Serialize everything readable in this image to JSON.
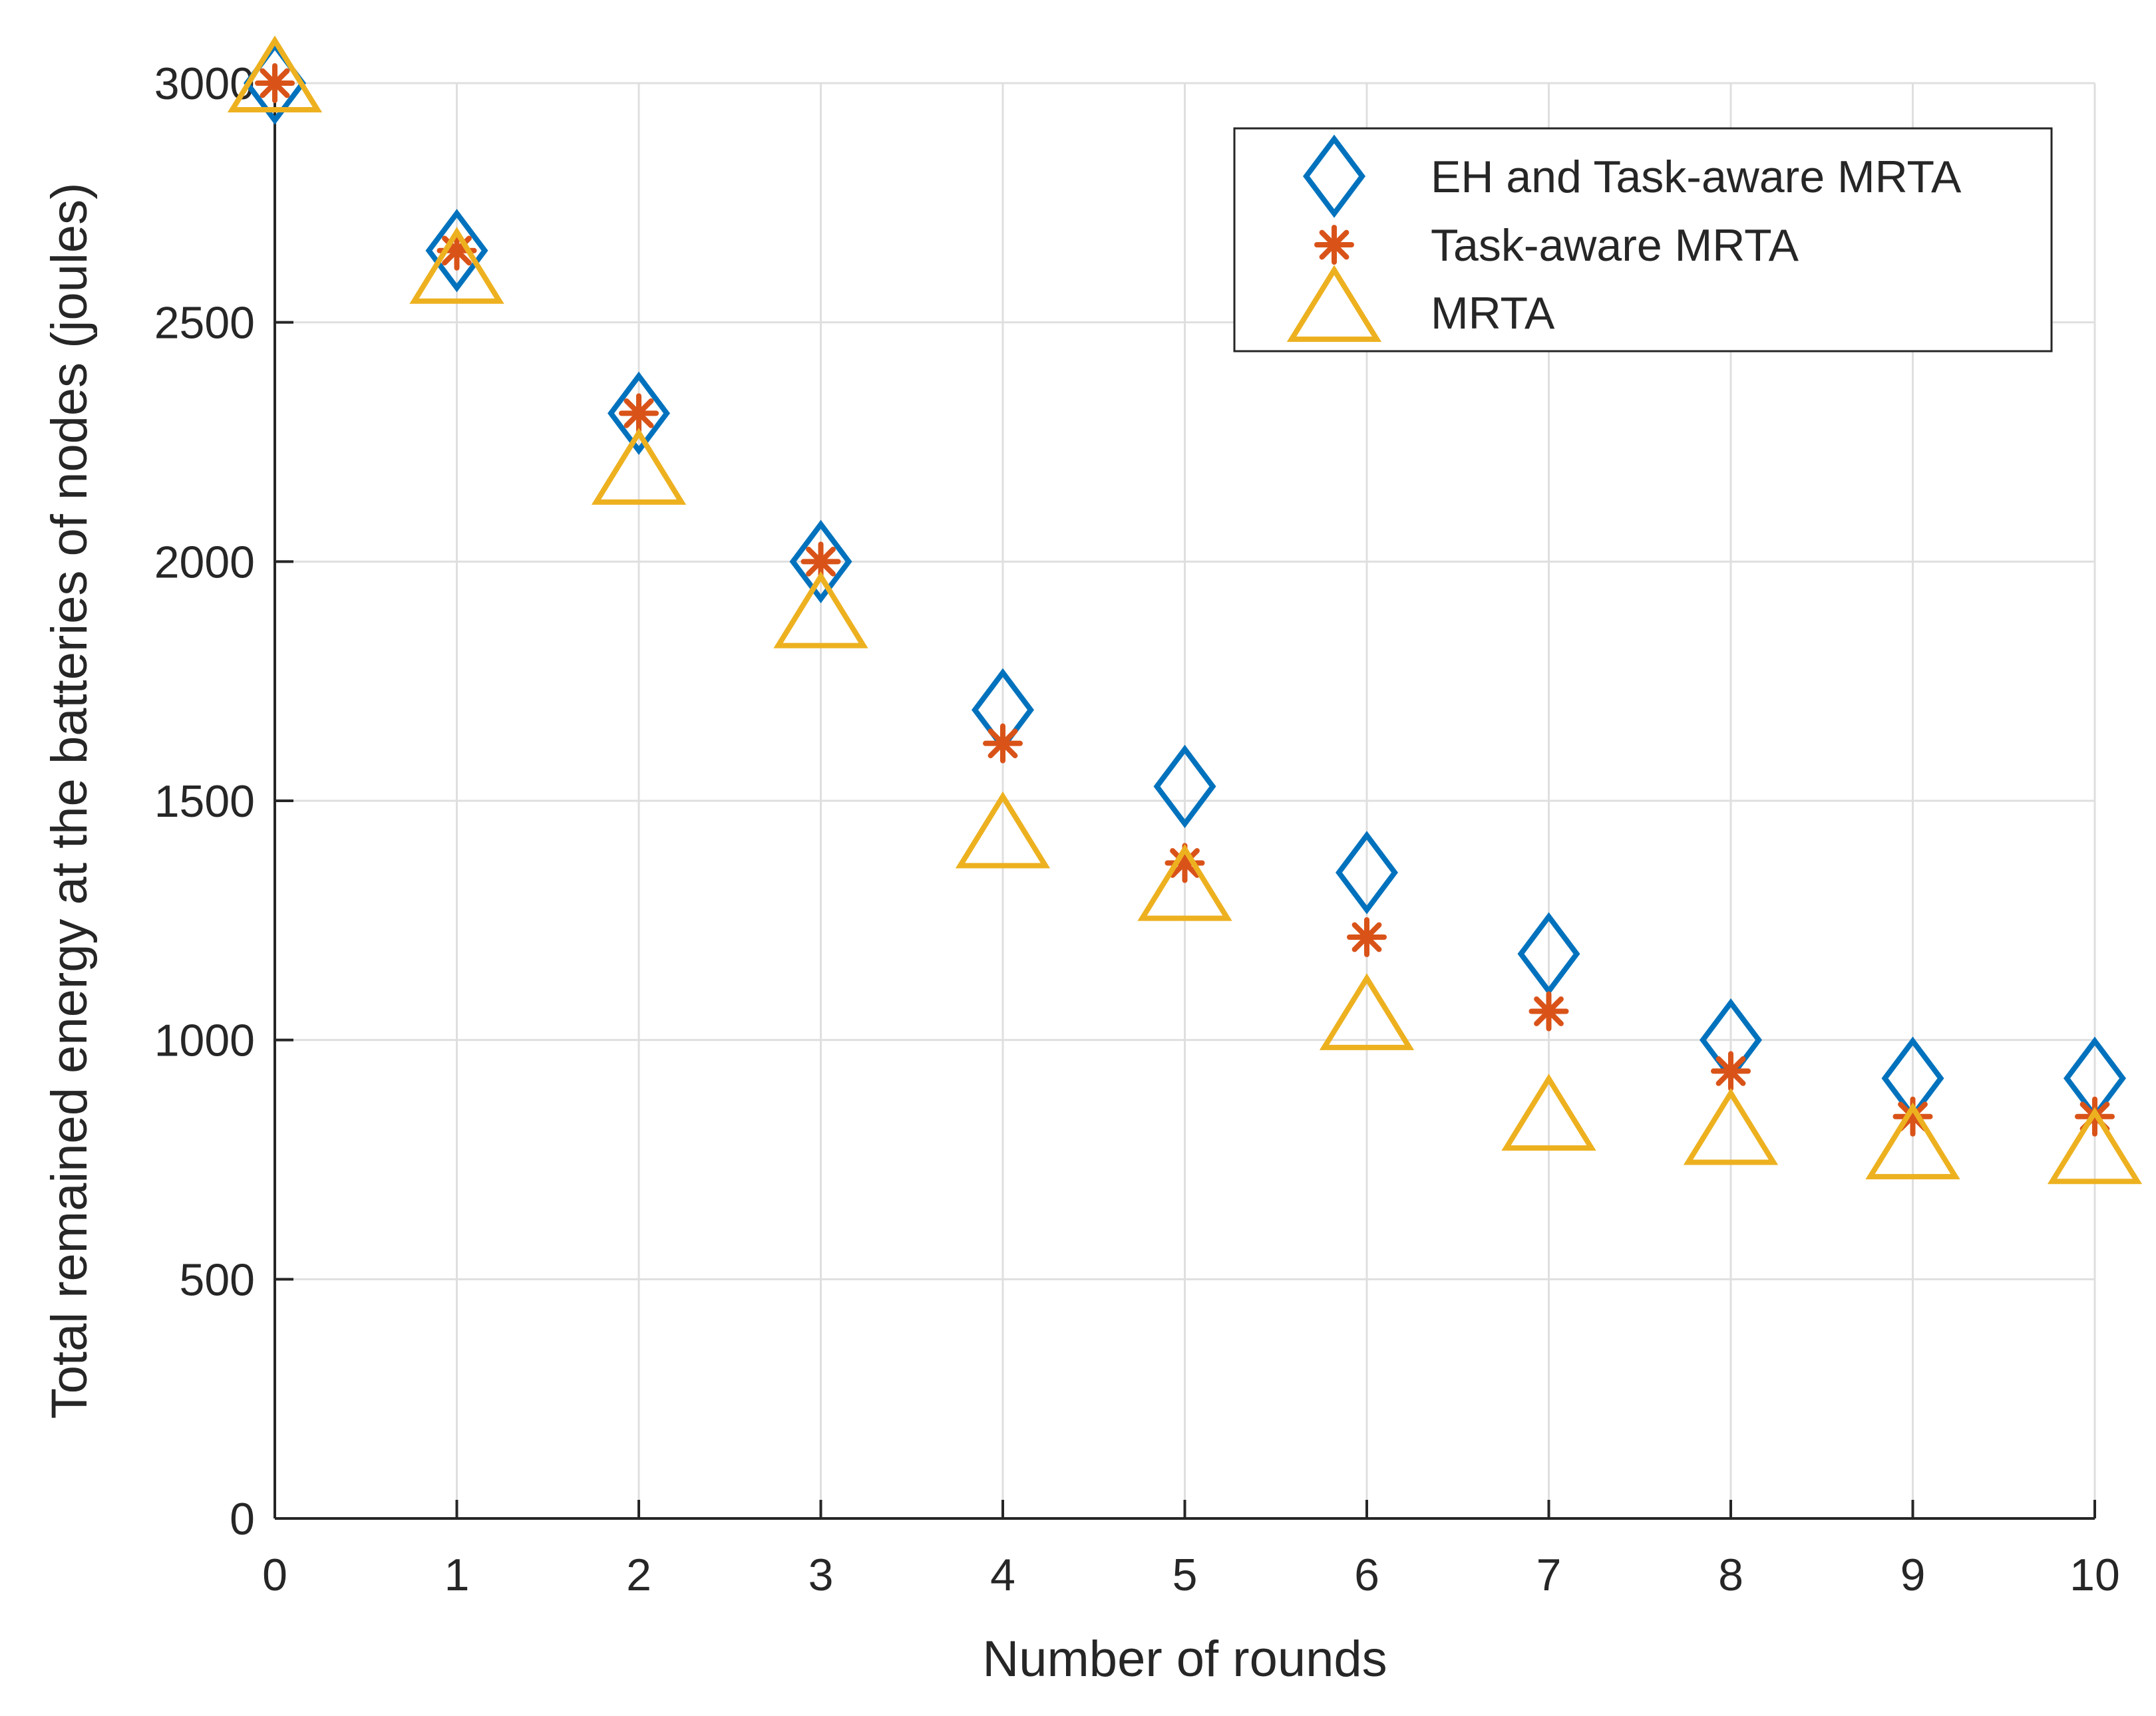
{
  "chart_data": {
    "type": "scatter",
    "title": "",
    "xlabel": "Number of rounds",
    "ylabel": "Total remained energy at the batteries of nodes (joules)",
    "xlim": [
      0,
      10
    ],
    "ylim": [
      0,
      3000
    ],
    "xticks": [
      0,
      1,
      2,
      3,
      4,
      5,
      6,
      7,
      8,
      9,
      10
    ],
    "yticks": [
      0,
      500,
      1000,
      1500,
      2000,
      2500,
      3000
    ],
    "xtick_labels": [
      "0",
      "1",
      "2",
      "3",
      "4",
      "5",
      "6",
      "7",
      "8",
      "9",
      "10"
    ],
    "ytick_labels": [
      "0",
      "500",
      "1000",
      "1500",
      "2000",
      "2500",
      "3000"
    ],
    "grid": true,
    "legend_position": "top-right",
    "x": [
      0,
      1,
      2,
      3,
      4,
      5,
      6,
      7,
      8,
      9,
      10
    ],
    "series": [
      {
        "name": "EH and Task-aware MRTA",
        "marker": "diamond",
        "color": "#0072BD",
        "values": [
          3000,
          2650,
          2310,
          2000,
          1690,
          1530,
          1350,
          1180,
          1000,
          920,
          920
        ]
      },
      {
        "name": "Task-aware MRTA",
        "marker": "asterisk",
        "color": "#D95319",
        "values": [
          3000,
          2650,
          2310,
          2000,
          1620,
          1370,
          1215,
          1060,
          935,
          840,
          840
        ]
      },
      {
        "name": "MRTA",
        "marker": "triangle",
        "color": "#EDB120",
        "values": [
          3000,
          2600,
          2180,
          1880,
          1420,
          1310,
          1040,
          830,
          800,
          770,
          760
        ]
      }
    ]
  }
}
